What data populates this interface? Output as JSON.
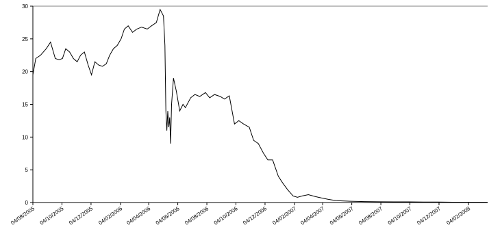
{
  "chart_data": {
    "type": "line",
    "title": "",
    "xlabel": "",
    "ylabel": "",
    "ylim": [
      0,
      30
    ],
    "y_ticks": [
      0,
      5,
      10,
      15,
      20,
      25,
      30
    ],
    "y_tick_labels": [
      "0",
      "5",
      "10",
      "15",
      "20",
      "25",
      "30"
    ],
    "grid": "top line only",
    "legend": "none",
    "x_range": [
      "2005-08-04",
      "2008-03-15"
    ],
    "x_ticks": [
      "2005-08-04",
      "2005-10-04",
      "2005-12-04",
      "2006-02-04",
      "2006-04-04",
      "2006-06-04",
      "2006-08-04",
      "2006-10-04",
      "2006-12-04",
      "2007-02-04",
      "2007-04-04",
      "2007-06-04",
      "2007-08-04",
      "2007-10-04",
      "2007-12-04",
      "2008-02-04"
    ],
    "x_tick_labels": [
      "04/08/2005",
      "04/10/2005",
      "04/12/2005",
      "04/02/2006",
      "04/04/2006",
      "04/06/2006",
      "04/08/2006",
      "04/10/2006",
      "04/12/2006",
      "04/02/2007",
      "04/04/2007",
      "04/06/2007",
      "04/08/2007",
      "04/10/2007",
      "04/12/2007",
      "04/02/2008"
    ],
    "line_color": "#000000",
    "series": [
      {
        "x": [
          "2005-08-04",
          "2005-08-10",
          "2005-08-20",
          "2005-09-01",
          "2005-09-10",
          "2005-09-20",
          "2005-09-28",
          "2005-10-05",
          "2005-10-12",
          "2005-10-20",
          "2005-10-28",
          "2005-11-05",
          "2005-11-12",
          "2005-11-20",
          "2005-11-28",
          "2005-12-05",
          "2005-12-12",
          "2005-12-20",
          "2005-12-28",
          "2006-01-05",
          "2006-01-12",
          "2006-01-20",
          "2006-01-28",
          "2006-02-05",
          "2006-02-12",
          "2006-02-20",
          "2006-03-01",
          "2006-03-10",
          "2006-03-20",
          "2006-04-01",
          "2006-04-10",
          "2006-04-20",
          "2006-04-28",
          "2006-05-05",
          "2006-05-08",
          "2006-05-10",
          "2006-05-12",
          "2006-05-14",
          "2006-05-16",
          "2006-05-18",
          "2006-05-20",
          "2006-05-22",
          "2006-05-26",
          "2006-06-01",
          "2006-06-08",
          "2006-06-15",
          "2006-06-20",
          "2006-07-01",
          "2006-07-10",
          "2006-07-20",
          "2006-08-01",
          "2006-08-10",
          "2006-08-20",
          "2006-09-01",
          "2006-09-10",
          "2006-09-20",
          "2006-10-01",
          "2006-10-10",
          "2006-10-20",
          "2006-11-01",
          "2006-11-10",
          "2006-11-20",
          "2006-12-01",
          "2006-12-10",
          "2006-12-20",
          "2007-01-01",
          "2007-01-10",
          "2007-01-20",
          "2007-02-01",
          "2007-02-10",
          "2007-02-20",
          "2007-03-05",
          "2007-03-20",
          "2007-04-01",
          "2007-04-15",
          "2007-05-01",
          "2007-05-15",
          "2007-06-01",
          "2007-07-01",
          "2007-08-01",
          "2007-09-01",
          "2007-10-01",
          "2007-11-01",
          "2007-12-01",
          "2008-01-01",
          "2008-02-01",
          "2008-03-01",
          "2008-03-15"
        ],
        "y": [
          19.5,
          22.0,
          22.5,
          23.5,
          24.5,
          22.0,
          21.8,
          22.0,
          23.5,
          23.0,
          22.0,
          21.5,
          22.5,
          23.0,
          21.0,
          19.5,
          21.5,
          21.0,
          20.8,
          21.2,
          22.5,
          23.5,
          24.0,
          25.0,
          26.5,
          27.0,
          26.0,
          26.5,
          26.8,
          26.5,
          27.0,
          27.5,
          29.5,
          28.5,
          24.0,
          14.0,
          11.0,
          14.0,
          11.5,
          13.0,
          9.0,
          15.0,
          19.0,
          17.0,
          14.0,
          15.0,
          14.5,
          16.0,
          16.5,
          16.2,
          16.8,
          16.0,
          16.5,
          16.2,
          15.8,
          16.3,
          12.0,
          12.5,
          12.0,
          11.5,
          9.5,
          9.0,
          7.5,
          6.5,
          6.5,
          4.0,
          3.0,
          2.0,
          1.0,
          0.8,
          1.0,
          1.2,
          0.9,
          0.7,
          0.5,
          0.3,
          0.25,
          0.2,
          0.15,
          0.12,
          0.1,
          0.1,
          0.08,
          0.08,
          0.05,
          0.05,
          0.05,
          0.05
        ]
      }
    ]
  }
}
